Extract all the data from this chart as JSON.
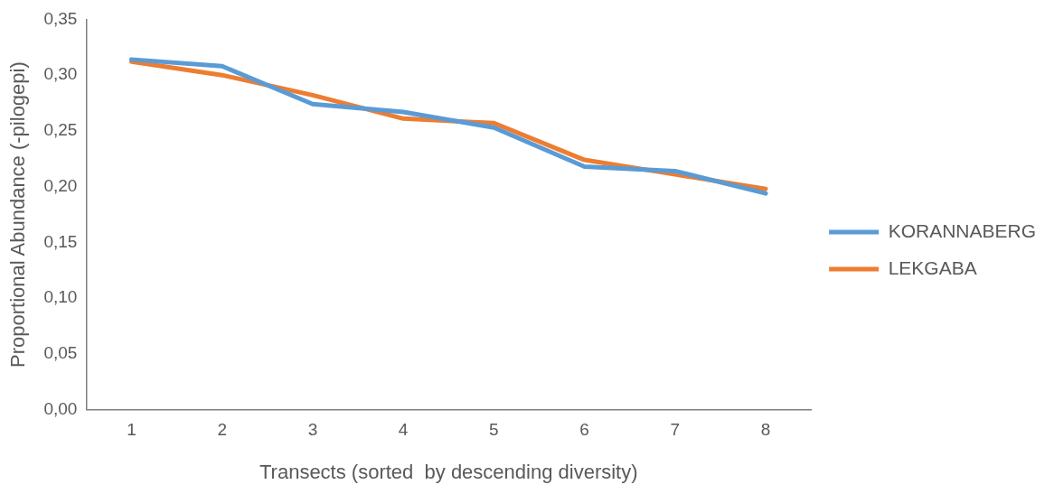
{
  "chart_data": {
    "type": "line",
    "xlabel": "Transects (sorted  by descending diversity)",
    "ylabel": "Proportional Abundance (-pilogepi)",
    "categories": [
      "1",
      "2",
      "3",
      "4",
      "5",
      "6",
      "7",
      "8"
    ],
    "series": [
      {
        "name": "KORANNABERG",
        "color": "#5b9bd5",
        "values": [
          0.314,
          0.308,
          0.274,
          0.267,
          0.253,
          0.218,
          0.214,
          0.194
        ]
      },
      {
        "name": "LEKGABA",
        "color": "#ed7d31",
        "values": [
          0.312,
          0.3,
          0.282,
          0.261,
          0.257,
          0.224,
          0.211,
          0.198
        ]
      }
    ],
    "ylim": [
      0,
      0.35
    ],
    "yticks": [
      {
        "value": 0,
        "label": "0,00"
      },
      {
        "value": 0.05,
        "label": "0,05"
      },
      {
        "value": 0.1,
        "label": "0,10"
      },
      {
        "value": 0.15,
        "label": "0,15"
      },
      {
        "value": 0.2,
        "label": "0,20"
      },
      {
        "value": 0.25,
        "label": "0,25"
      },
      {
        "value": 0.3,
        "label": "0,30"
      },
      {
        "value": 0.35,
        "label": "0,35"
      }
    ],
    "grid": false,
    "legend": "right",
    "marker": "none",
    "line_style": "solid"
  }
}
